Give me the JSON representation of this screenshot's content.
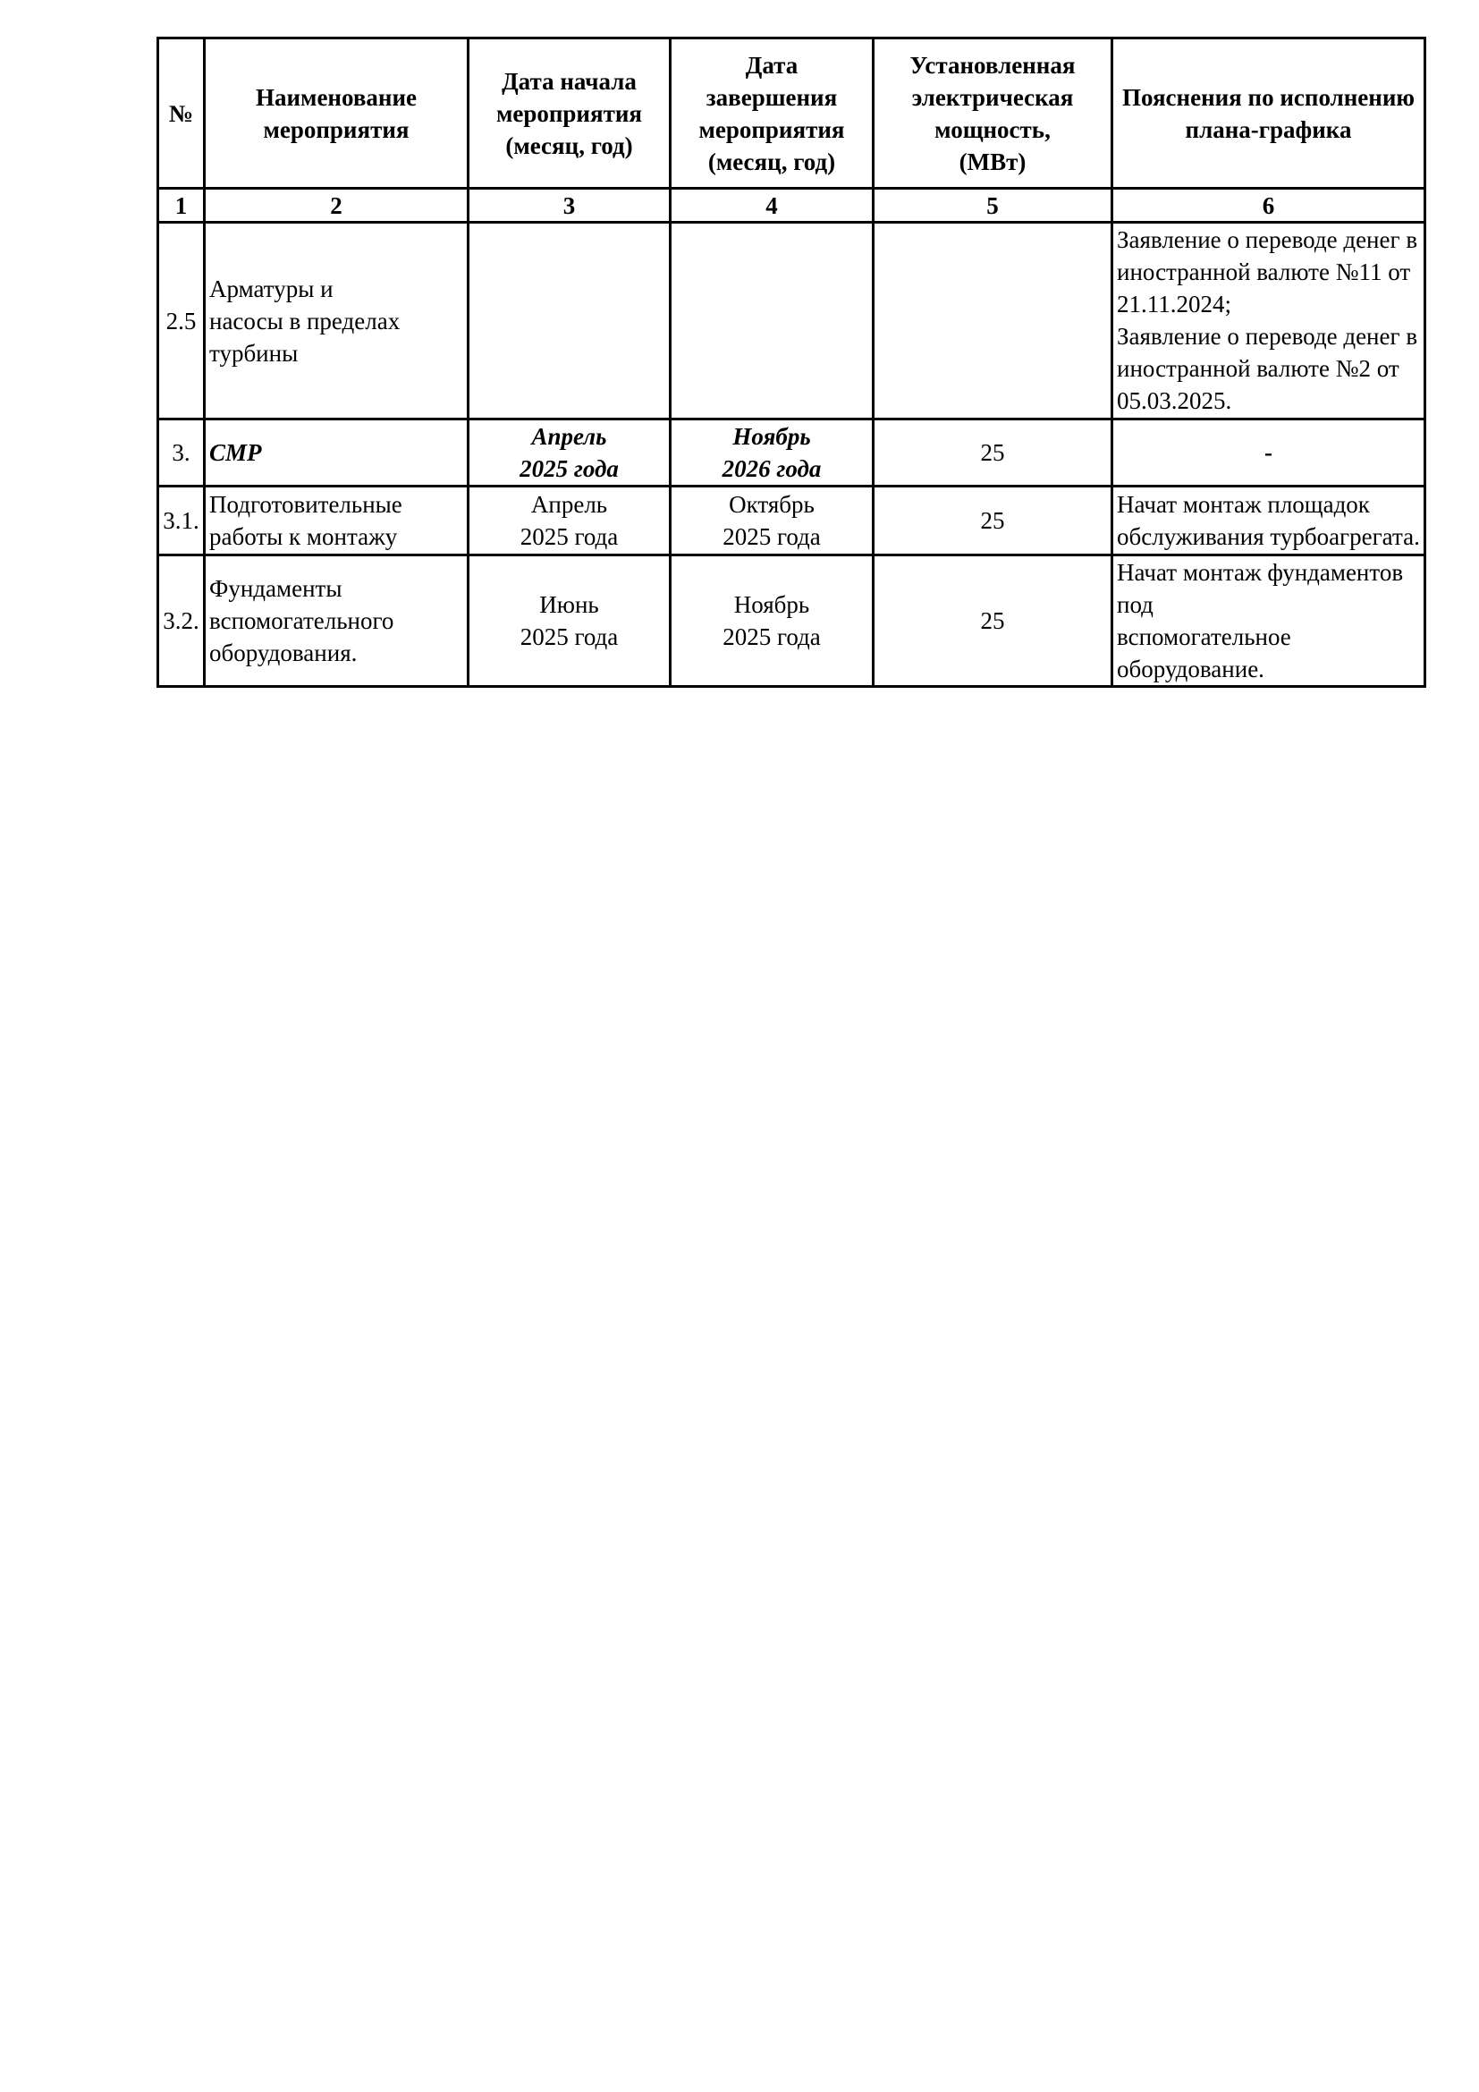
{
  "page": {
    "background_color": "#ffffff",
    "text_color": "#000000",
    "border_color": "#000000"
  },
  "table": {
    "header": [
      "№",
      "Наименование\nмероприятия",
      "Дата начала\nмероприятия\n(месяц, год)",
      "Дата\nзавершения\nмероприятия\n(месяц, год)",
      "Установленная\nэлектрическая\nмощность,\n(МВт)",
      "Пояснения по исполнению\nплана-графика"
    ],
    "column_numbers": [
      "1",
      "2",
      "3",
      "4",
      "5",
      "6"
    ],
    "rows": [
      {
        "num": "2.5",
        "name": "Арматуры и\nнасосы в пределах\nтурбины",
        "date_start": "",
        "date_end": "",
        "power_mw": "",
        "note": "Заявление о переводе денег в\nиностранной валюте №11 от\n21.11.2024;\nЗаявление о переводе денег в\nиностранной валюте №2 от\n05.03.2025."
      },
      {
        "num": "3.",
        "name": "СМР",
        "date_start": "Апрель\n2025 года",
        "date_end": "Ноябрь\n2026 года",
        "power_mw": "25",
        "note": "-"
      },
      {
        "num": "3.1.",
        "name": "Подготовительные\nработы к монтажу",
        "date_start": "Апрель\n2025 года",
        "date_end": "Октябрь\n2025 года",
        "power_mw": "25",
        "note": "Начат монтаж площадок\nобслуживания турбоагрегата."
      },
      {
        "num": "3.2.",
        "name": "Фундаменты\nвспомогательного\nоборудования.",
        "date_start": "Июнь\n2025 года",
        "date_end": "Ноябрь\n2025 года",
        "power_mw": "25",
        "note": "Начат монтаж фундаментов под\nвспомогательное оборудование."
      }
    ]
  }
}
